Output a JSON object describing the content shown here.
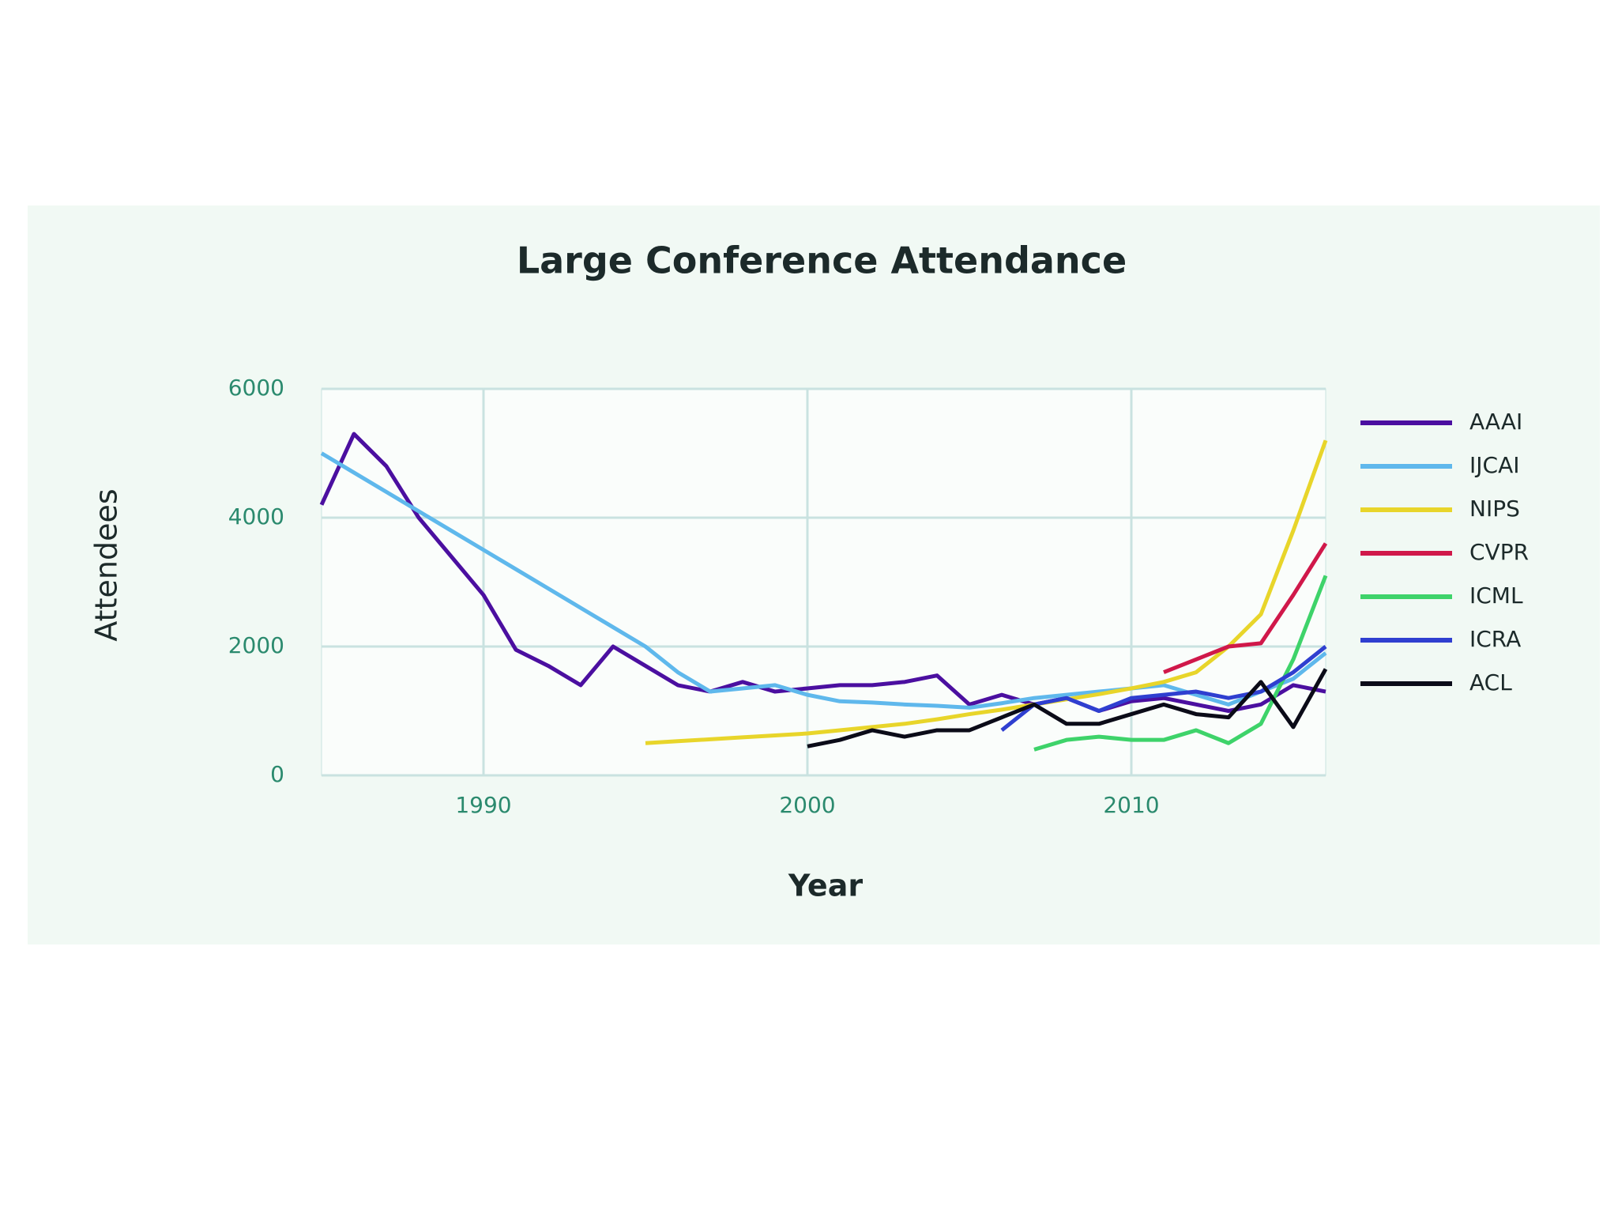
{
  "chart_data": {
    "type": "line",
    "title": "Large Conference Attendance",
    "x_label": "Year",
    "y_label": "Attendees",
    "x": [
      1985,
      1986,
      1987,
      1988,
      1989,
      1990,
      1991,
      1992,
      1993,
      1994,
      1995,
      1996,
      1997,
      1998,
      1999,
      2000,
      2001,
      2002,
      2003,
      2004,
      2005,
      2006,
      2007,
      2008,
      2009,
      2010,
      2011,
      2012,
      2013,
      2014,
      2015,
      2016
    ],
    "series": [
      {
        "name": "AAAI",
        "color": "#4b0fa0",
        "values": [
          4200,
          5300,
          4800,
          4000,
          3400,
          2800,
          1950,
          1700,
          1400,
          2000,
          1700,
          1400,
          1300,
          1450,
          1300,
          1350,
          1400,
          1400,
          1450,
          1550,
          1100,
          1250,
          1100,
          1200,
          1000,
          1150,
          1200,
          1100,
          1000,
          1100,
          1400,
          1300
        ]
      },
      {
        "name": "IJCAI",
        "color": "#5fb8ec",
        "values": [
          5000,
          4700,
          4400,
          4100,
          3800,
          3500,
          3200,
          2900,
          2600,
          2300,
          2000,
          1600,
          1300,
          1350,
          1400,
          1250,
          1150,
          1130,
          1100,
          1080,
          1050,
          1120,
          1200,
          1250,
          1300,
          1350,
          1400,
          1250,
          1100,
          1300,
          1500,
          1900
        ]
      },
      {
        "name": "NIPS",
        "color": "#e8d52a",
        "values": [
          null,
          null,
          null,
          null,
          null,
          null,
          null,
          null,
          null,
          null,
          500,
          530,
          560,
          590,
          620,
          650,
          700,
          750,
          800,
          870,
          950,
          1020,
          1100,
          1180,
          1260,
          1350,
          1450,
          1600,
          2000,
          2500,
          3800,
          5200
        ]
      },
      {
        "name": "CVPR",
        "color": "#d0184a",
        "values": [
          null,
          null,
          null,
          null,
          null,
          null,
          null,
          null,
          null,
          null,
          null,
          null,
          null,
          null,
          null,
          null,
          null,
          null,
          null,
          null,
          null,
          null,
          null,
          null,
          null,
          null,
          1600,
          1800,
          2000,
          2050,
          2800,
          3600
        ]
      },
      {
        "name": "ICML",
        "color": "#3ed36a",
        "values": [
          null,
          null,
          null,
          null,
          null,
          null,
          null,
          null,
          null,
          null,
          null,
          null,
          null,
          null,
          null,
          null,
          null,
          null,
          null,
          null,
          null,
          null,
          400,
          550,
          600,
          550,
          550,
          700,
          500,
          800,
          1800,
          3100
        ]
      },
      {
        "name": "ICRA",
        "color": "#2f3fd0",
        "values": [
          null,
          null,
          null,
          null,
          null,
          null,
          null,
          null,
          null,
          null,
          null,
          null,
          null,
          null,
          null,
          null,
          null,
          null,
          null,
          null,
          null,
          700,
          1100,
          1200,
          1000,
          1200,
          1250,
          1300,
          1200,
          1300,
          1600,
          2000
        ]
      },
      {
        "name": "ACL",
        "color": "#0b0b18",
        "values": [
          null,
          null,
          null,
          null,
          null,
          null,
          null,
          null,
          null,
          null,
          null,
          null,
          null,
          null,
          null,
          450,
          550,
          700,
          600,
          700,
          700,
          900,
          1100,
          800,
          800,
          950,
          1100,
          950,
          900,
          1450,
          750,
          1650
        ]
      }
    ],
    "xlim": [
      1985,
      2016
    ],
    "xticks": [
      1990,
      2000,
      2010
    ],
    "ylim": [
      0,
      6000
    ],
    "yticks": [
      0,
      2000,
      4000,
      6000
    ],
    "grid": true
  }
}
